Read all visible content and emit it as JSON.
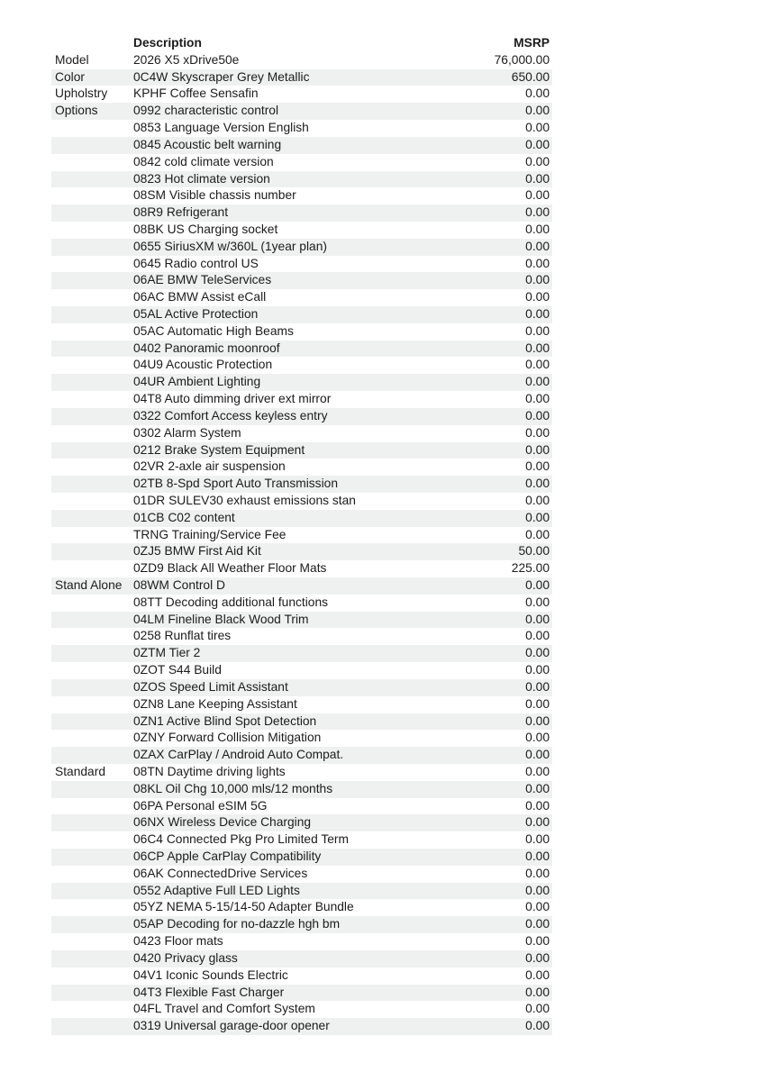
{
  "table": {
    "stripe_color": "#eff1f0",
    "text_color": "#1b1b1b",
    "headers": {
      "category": "",
      "description": "Description",
      "msrp": "MSRP"
    },
    "rows": [
      {
        "label": "Model",
        "description": "2026 X5 xDrive50e",
        "msrp": "76,000.00"
      },
      {
        "label": "Color",
        "description": "0C4W Skyscraper Grey Metallic",
        "msrp": "650.00"
      },
      {
        "label": "Upholstry",
        "description": "KPHF Coffee Sensafin",
        "msrp": "0.00"
      },
      {
        "label": "Options",
        "description": "0992 characteristic control",
        "msrp": "0.00"
      },
      {
        "label": "",
        "description": "0853 Language Version English",
        "msrp": "0.00"
      },
      {
        "label": "",
        "description": "0845 Acoustic belt warning",
        "msrp": "0.00"
      },
      {
        "label": "",
        "description": "0842 cold climate version",
        "msrp": "0.00"
      },
      {
        "label": "",
        "description": "0823 Hot climate version",
        "msrp": "0.00"
      },
      {
        "label": "",
        "description": "08SM Visible chassis number",
        "msrp": "0.00"
      },
      {
        "label": "",
        "description": "08R9 Refrigerant",
        "msrp": "0.00"
      },
      {
        "label": "",
        "description": "08BK US Charging socket",
        "msrp": "0.00"
      },
      {
        "label": "",
        "description": "0655 SiriusXM w/360L (1year plan)",
        "msrp": "0.00"
      },
      {
        "label": "",
        "description": "0645 Radio control US",
        "msrp": "0.00"
      },
      {
        "label": "",
        "description": "06AE BMW TeleServices",
        "msrp": "0.00"
      },
      {
        "label": "",
        "description": "06AC BMW Assist eCall",
        "msrp": "0.00"
      },
      {
        "label": "",
        "description": "05AL Active Protection",
        "msrp": "0.00"
      },
      {
        "label": "",
        "description": "05AC Automatic High Beams",
        "msrp": "0.00"
      },
      {
        "label": "",
        "description": "0402 Panoramic moonroof",
        "msrp": "0.00"
      },
      {
        "label": "",
        "description": "04U9 Acoustic Protection",
        "msrp": "0.00"
      },
      {
        "label": "",
        "description": "04UR Ambient Lighting",
        "msrp": "0.00"
      },
      {
        "label": "",
        "description": "04T8 Auto dimming driver ext mirror",
        "msrp": "0.00"
      },
      {
        "label": "",
        "description": "0322 Comfort Access keyless entry",
        "msrp": "0.00"
      },
      {
        "label": "",
        "description": "0302 Alarm System",
        "msrp": "0.00"
      },
      {
        "label": "",
        "description": "0212 Brake System Equipment",
        "msrp": "0.00"
      },
      {
        "label": "",
        "description": "02VR 2-axle air suspension",
        "msrp": "0.00"
      },
      {
        "label": "",
        "description": "02TB 8-Spd Sport Auto Transmission",
        "msrp": "0.00"
      },
      {
        "label": "",
        "description": "01DR SULEV30 exhaust emissions stan",
        "msrp": "0.00"
      },
      {
        "label": "",
        "description": "01CB C02 content",
        "msrp": "0.00"
      },
      {
        "label": "",
        "description": "TRNG Training/Service Fee",
        "msrp": "0.00"
      },
      {
        "label": "",
        "description": "0ZJ5 BMW First Aid Kit",
        "msrp": "50.00"
      },
      {
        "label": "",
        "description": "0ZD9 Black All Weather Floor Mats",
        "msrp": "225.00"
      },
      {
        "label": "Stand Alone",
        "description": "08WM Control D",
        "msrp": "0.00"
      },
      {
        "label": "",
        "description": "08TT Decoding additional functions",
        "msrp": "0.00"
      },
      {
        "label": "",
        "description": "04LM Fineline Black Wood Trim",
        "msrp": "0.00"
      },
      {
        "label": "",
        "description": "0258 Runflat tires",
        "msrp": "0.00"
      },
      {
        "label": "",
        "description": "0ZTM Tier 2",
        "msrp": "0.00"
      },
      {
        "label": "",
        "description": "0ZOT S44 Build",
        "msrp": "0.00"
      },
      {
        "label": "",
        "description": "0ZOS Speed Limit Assistant",
        "msrp": "0.00"
      },
      {
        "label": "",
        "description": "0ZN8 Lane Keeping Assistant",
        "msrp": "0.00"
      },
      {
        "label": "",
        "description": "0ZN1 Active Blind Spot Detection",
        "msrp": "0.00"
      },
      {
        "label": "",
        "description": "0ZNY Forward Collision Mitigation",
        "msrp": "0.00"
      },
      {
        "label": "",
        "description": "0ZAX CarPlay / Android Auto Compat.",
        "msrp": "0.00"
      },
      {
        "label": "Standard",
        "description": "08TN Daytime driving lights",
        "msrp": "0.00"
      },
      {
        "label": "",
        "description": "08KL Oil Chg 10,000 mls/12 months",
        "msrp": "0.00"
      },
      {
        "label": "",
        "description": "06PA Personal eSIM 5G",
        "msrp": "0.00"
      },
      {
        "label": "",
        "description": "06NX Wireless Device Charging",
        "msrp": "0.00"
      },
      {
        "label": "",
        "description": "06C4 Connected Pkg Pro Limited Term",
        "msrp": "0.00"
      },
      {
        "label": "",
        "description": "06CP Apple CarPlay Compatibility",
        "msrp": "0.00"
      },
      {
        "label": "",
        "description": "06AK ConnectedDrive Services",
        "msrp": "0.00"
      },
      {
        "label": "",
        "description": "0552 Adaptive Full LED Lights",
        "msrp": "0.00"
      },
      {
        "label": "",
        "description": "05YZ NEMA 5-15/14-50 Adapter Bundle",
        "msrp": "0.00"
      },
      {
        "label": "",
        "description": "05AP Decoding for no-dazzle hgh bm",
        "msrp": "0.00"
      },
      {
        "label": "",
        "description": "0423 Floor mats",
        "msrp": "0.00"
      },
      {
        "label": "",
        "description": "0420 Privacy glass",
        "msrp": "0.00"
      },
      {
        "label": "",
        "description": "04V1 Iconic Sounds Electric",
        "msrp": "0.00"
      },
      {
        "label": "",
        "description": "04T3 Flexible Fast Charger",
        "msrp": "0.00"
      },
      {
        "label": "",
        "description": "04FL Travel and Comfort System",
        "msrp": "0.00"
      },
      {
        "label": "",
        "description": "0319 Universal garage-door opener",
        "msrp": "0.00"
      }
    ]
  }
}
